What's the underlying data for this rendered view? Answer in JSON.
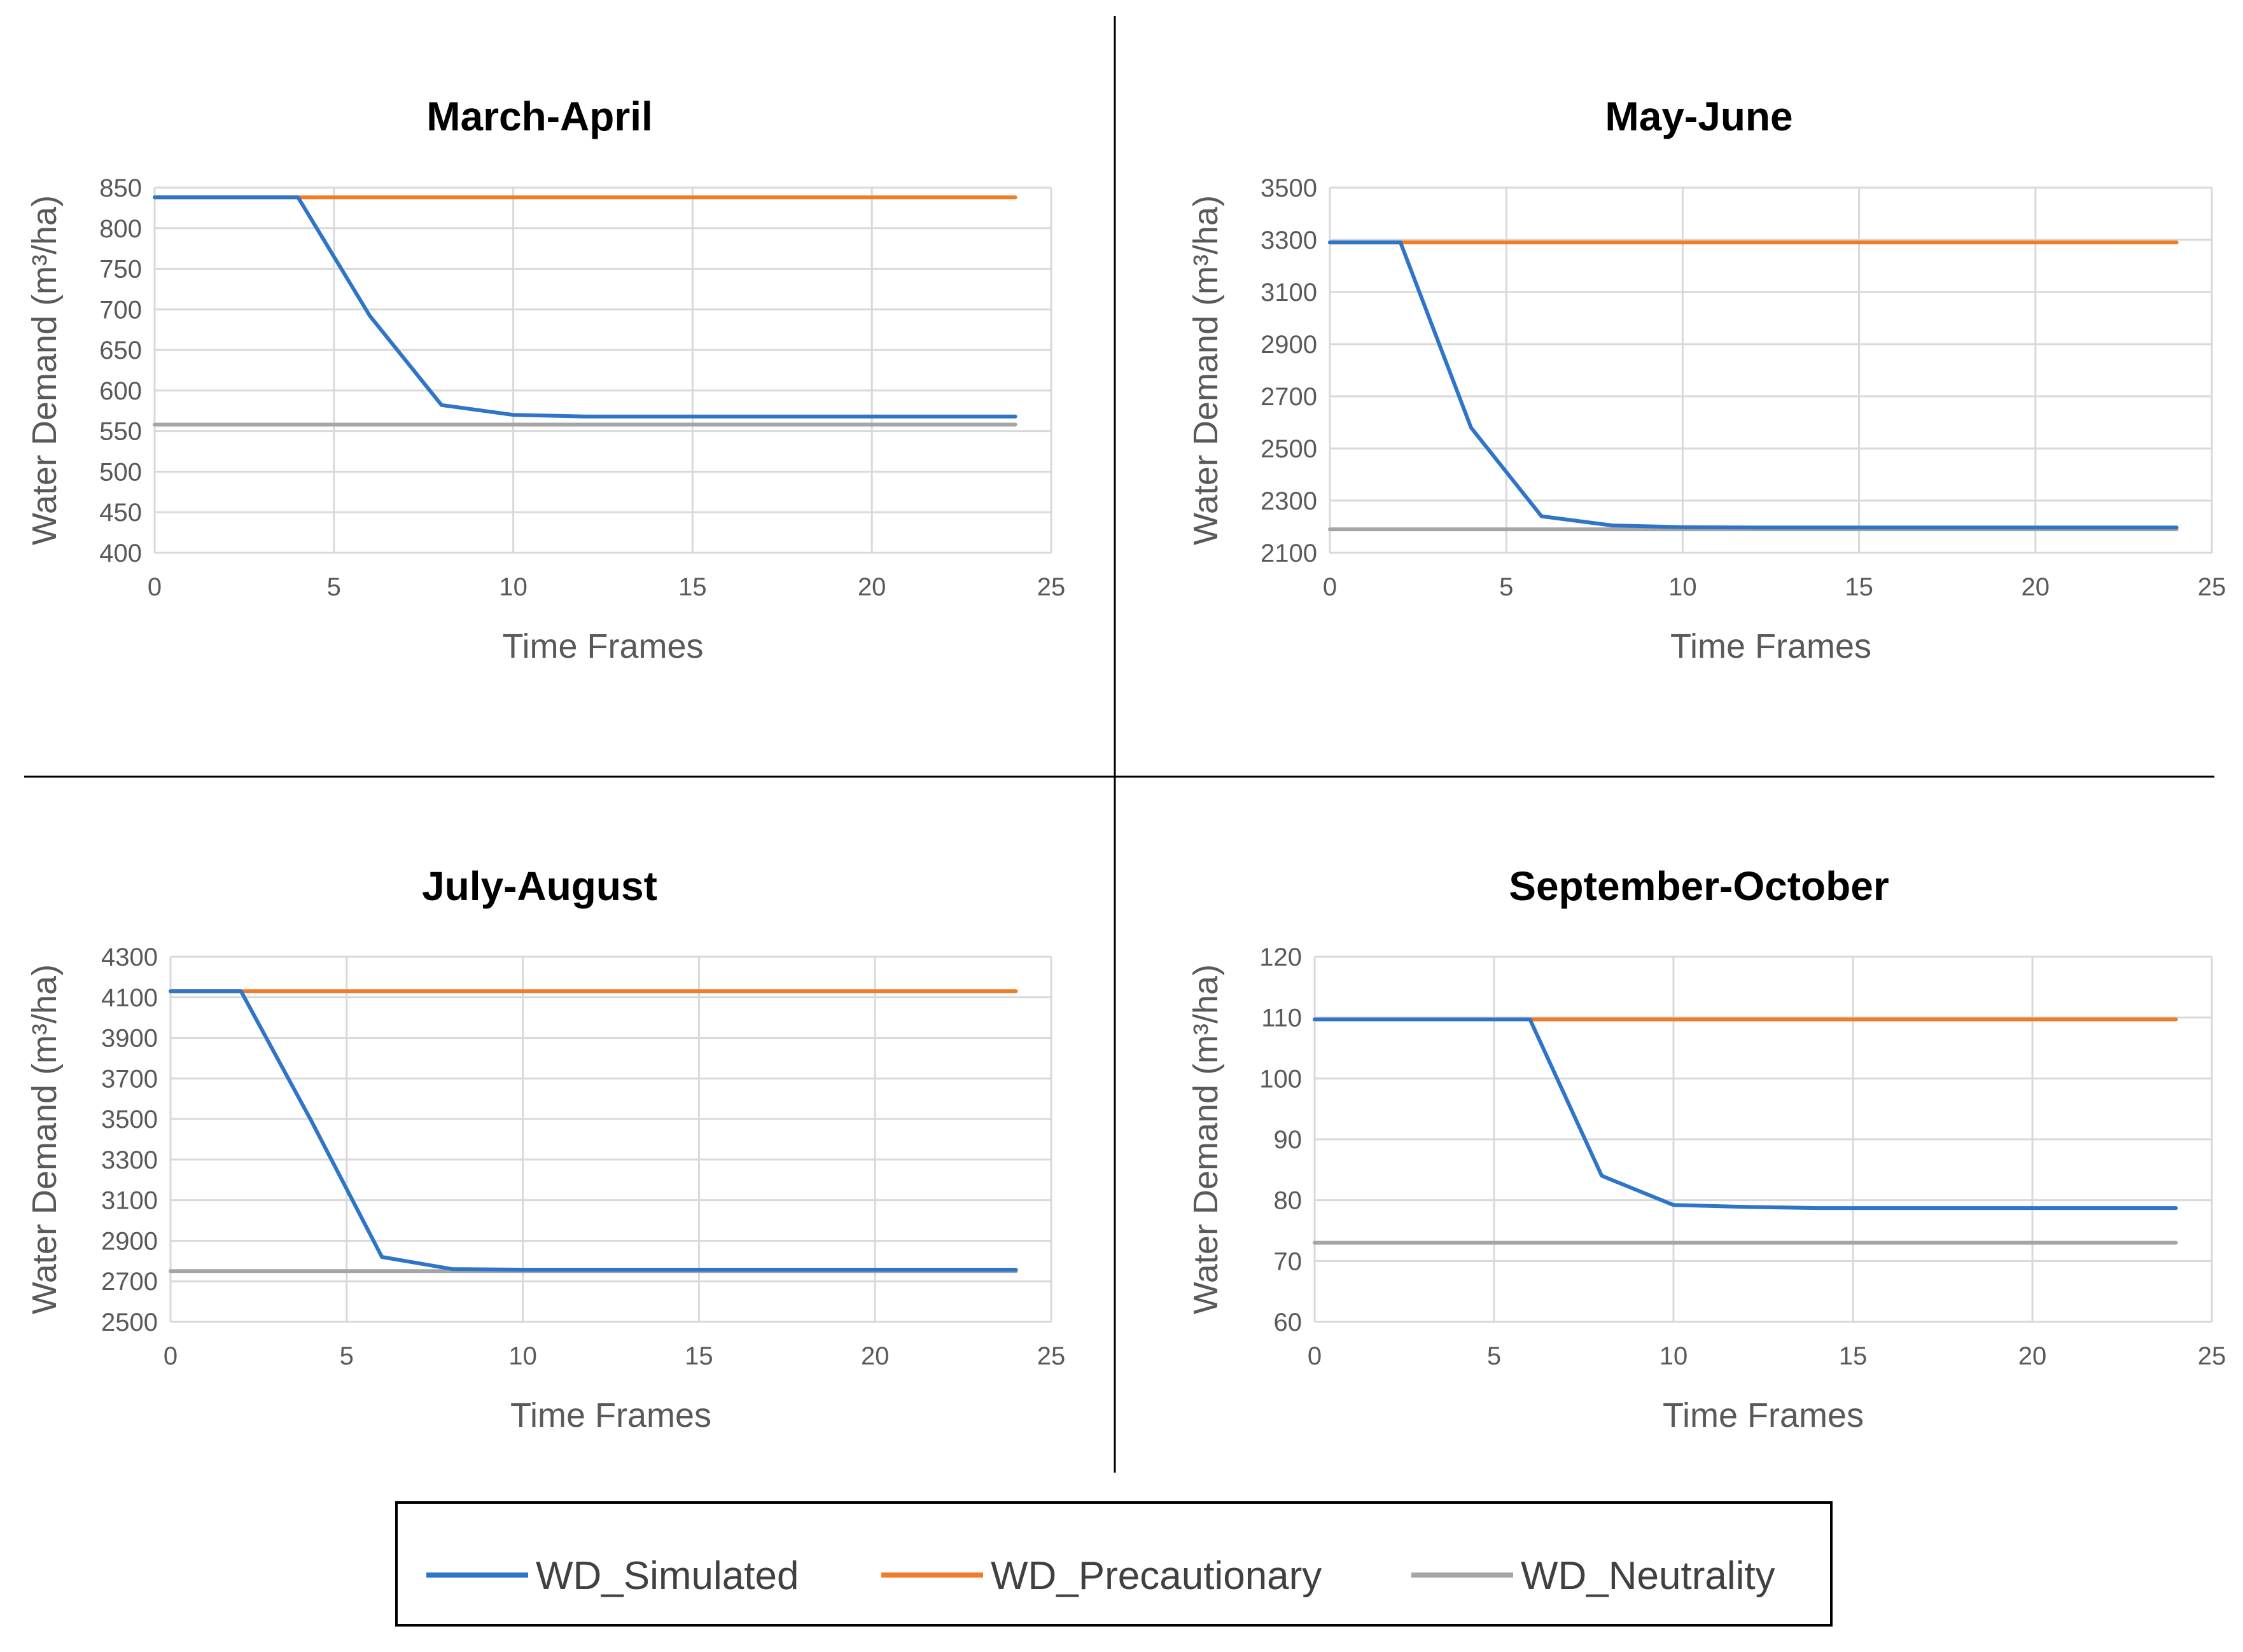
{
  "colors": {
    "WD_Simulated": "#2E75C8",
    "WD_Precautionary": "#F07C28",
    "WD_Neutrality": "#A5A5A5",
    "grid": "#D9D9D9",
    "divider": "#000000"
  },
  "legend": {
    "placement": "bottom",
    "items": [
      {
        "name": "WD_Simulated",
        "label": "WD_Simulated"
      },
      {
        "name": "WD_Precautionary",
        "label": "WD_Precautionary"
      },
      {
        "name": "WD_Neutrality",
        "label": "WD_Neutrality"
      }
    ]
  },
  "chart_data": [
    {
      "type": "line",
      "title": "March-April",
      "xlabel": "Time Frames",
      "ylabel": "Water Demand (m³/ha)",
      "xlim": [
        0,
        25
      ],
      "ylim": [
        400,
        850
      ],
      "xticks": [
        0,
        5,
        10,
        15,
        20,
        25
      ],
      "yticks": [
        400,
        450,
        500,
        550,
        600,
        650,
        700,
        750,
        800,
        850
      ],
      "grid": true,
      "series": [
        {
          "name": "WD_Simulated",
          "x": [
            0,
            2,
            4,
            6,
            8,
            10,
            12,
            14,
            16,
            18,
            20,
            22,
            24
          ],
          "y": [
            838,
            838,
            838,
            692,
            582,
            570,
            568,
            568,
            568,
            568,
            568,
            568,
            568
          ]
        },
        {
          "name": "WD_Precautionary",
          "x": [
            0,
            24
          ],
          "y": [
            838,
            838
          ]
        },
        {
          "name": "WD_Neutrality",
          "x": [
            0,
            24
          ],
          "y": [
            558,
            558
          ]
        }
      ]
    },
    {
      "type": "line",
      "title": "May-June",
      "xlabel": "Time Frames",
      "ylabel": "Water Demand (m³/ha)",
      "xlim": [
        0,
        25
      ],
      "ylim": [
        2100,
        3500
      ],
      "xticks": [
        0,
        5,
        10,
        15,
        20,
        25
      ],
      "yticks": [
        2100,
        2300,
        2500,
        2700,
        2900,
        3100,
        3300,
        3500
      ],
      "grid": true,
      "series": [
        {
          "name": "WD_Simulated",
          "x": [
            0,
            2,
            4,
            6,
            8,
            10,
            12,
            14,
            16,
            18,
            20,
            22,
            24
          ],
          "y": [
            3290,
            3290,
            2580,
            2240,
            2205,
            2198,
            2197,
            2197,
            2197,
            2197,
            2197,
            2197,
            2197
          ]
        },
        {
          "name": "WD_Precautionary",
          "x": [
            0,
            24
          ],
          "y": [
            3290,
            3290
          ]
        },
        {
          "name": "WD_Neutrality",
          "x": [
            0,
            24
          ],
          "y": [
            2190,
            2190
          ]
        }
      ]
    },
    {
      "type": "line",
      "title": "July-August",
      "xlabel": "Time Frames",
      "ylabel": "Water Demand (m³/ha)",
      "xlim": [
        0,
        25
      ],
      "ylim": [
        2500,
        4300
      ],
      "xticks": [
        0,
        5,
        10,
        15,
        20,
        25
      ],
      "yticks": [
        2500,
        2700,
        2900,
        3100,
        3300,
        3500,
        3700,
        3900,
        4100,
        4300
      ],
      "grid": true,
      "series": [
        {
          "name": "WD_Simulated",
          "x": [
            0,
            2,
            4,
            6,
            8,
            10,
            12,
            14,
            16,
            18,
            20,
            22,
            24
          ],
          "y": [
            4130,
            4130,
            3490,
            2820,
            2760,
            2757,
            2757,
            2757,
            2757,
            2757,
            2757,
            2757,
            2757
          ]
        },
        {
          "name": "WD_Precautionary",
          "x": [
            0,
            24
          ],
          "y": [
            4130,
            4130
          ]
        },
        {
          "name": "WD_Neutrality",
          "x": [
            0,
            24
          ],
          "y": [
            2750,
            2750
          ]
        }
      ]
    },
    {
      "type": "line",
      "title": "September-October",
      "xlabel": "Time Frames",
      "ylabel": "Water Demand (m³/ha)",
      "xlim": [
        0,
        25
      ],
      "ylim": [
        60,
        120
      ],
      "xticks": [
        0,
        5,
        10,
        15,
        20,
        25
      ],
      "yticks": [
        60,
        70,
        80,
        90,
        100,
        110,
        120
      ],
      "grid": true,
      "series": [
        {
          "name": "WD_Simulated",
          "x": [
            0,
            2,
            4,
            6,
            8,
            10,
            12,
            14,
            16,
            18,
            20,
            22,
            24
          ],
          "y": [
            109.7,
            109.7,
            109.7,
            109.7,
            84,
            79.2,
            78.9,
            78.7,
            78.7,
            78.7,
            78.7,
            78.7,
            78.7
          ]
        },
        {
          "name": "WD_Precautionary",
          "x": [
            0,
            24
          ],
          "y": [
            109.7,
            109.7
          ]
        },
        {
          "name": "WD_Neutrality",
          "x": [
            0,
            24
          ],
          "y": [
            73,
            73
          ]
        }
      ]
    }
  ]
}
